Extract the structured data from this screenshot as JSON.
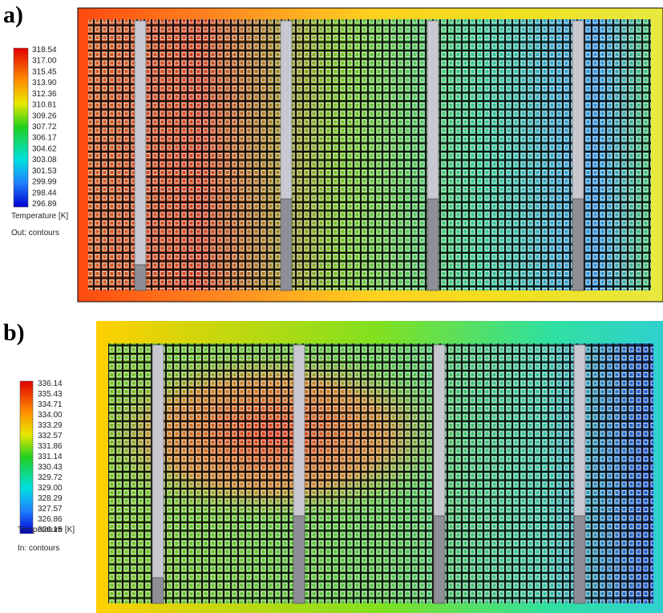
{
  "panels": [
    {
      "tag": "a)",
      "legend_values": [
        "318.54",
        "317.00",
        "315.45",
        "313.90",
        "312.36",
        "310.81",
        "309.26",
        "307.72",
        "306.17",
        "304.62",
        "303.08",
        "301.53",
        "299.99",
        "298.44",
        "296.89"
      ],
      "legend_title": "Temperature [K]",
      "legend_note": "Out: contours"
    },
    {
      "tag": "b)",
      "legend_values": [
        "336.14",
        "335.43",
        "334.71",
        "334.00",
        "333.29",
        "332.57",
        "331.86",
        "331.14",
        "330.43",
        "329.72",
        "329.00",
        "328.29",
        "327.57",
        "326.86",
        "326.15"
      ],
      "legend_title": "Temperature [K]",
      "legend_note": "In: contours"
    }
  ]
}
